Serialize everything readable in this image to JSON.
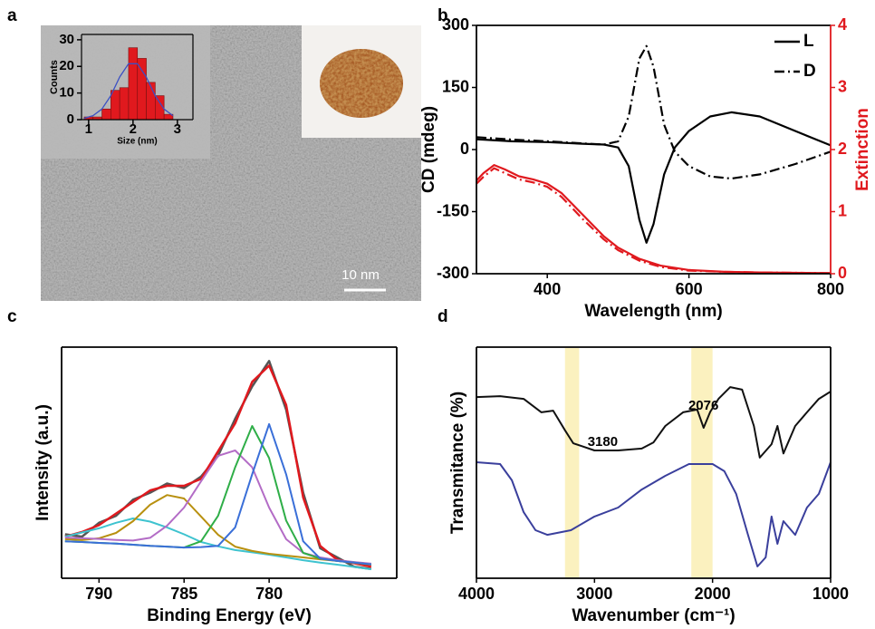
{
  "chart_data": [
    {
      "type": "histogram",
      "panel": "a",
      "xlabel": "Size (nm)",
      "ylabel": "Counts",
      "bins": [
        0.9,
        1.1,
        1.3,
        1.5,
        1.7,
        1.9,
        2.1,
        2.3,
        2.5,
        2.7,
        2.9
      ],
      "counts": [
        1,
        1,
        4,
        11,
        12,
        27,
        23,
        14,
        9,
        2
      ],
      "color": "#e0191e",
      "fit": {
        "color": "#3a4fc4",
        "x": [
          0.9,
          1.1,
          1.3,
          1.5,
          1.7,
          1.9,
          2.1,
          2.3,
          2.5,
          2.7,
          2.9
        ],
        "values": [
          0.5,
          1.5,
          4,
          9,
          16,
          21,
          21,
          16,
          9,
          4,
          1.5
        ]
      },
      "xlim": [
        0.84,
        3.35
      ],
      "xticks": [
        1,
        2,
        3
      ],
      "ylim": [
        0,
        32
      ],
      "yticks": [
        0,
        10,
        20,
        30
      ],
      "scale_bar_label": "10 nm"
    },
    {
      "type": "line",
      "panel": "b",
      "xlabel": "Wavelength (nm)",
      "ylabel": "CD (mdeg)",
      "y2label": "Extinction",
      "xlim": [
        300,
        800
      ],
      "xticks": [
        400,
        600,
        800
      ],
      "ylim": [
        -300,
        300
      ],
      "yticks": [
        -300,
        -150,
        0,
        150,
        300
      ],
      "y2lim": [
        0,
        4
      ],
      "y2ticks": [
        0,
        1,
        2,
        3,
        4
      ],
      "y2color": "#e0191e",
      "legend": "upper right",
      "series": [
        {
          "name": "L",
          "color": "#000000",
          "dash": "solid",
          "x": [
            300,
            350,
            400,
            450,
            480,
            500,
            515,
            530,
            540,
            550,
            565,
            580,
            600,
            630,
            660,
            700,
            750,
            800
          ],
          "values": [
            25,
            20,
            18,
            14,
            12,
            5,
            -40,
            -170,
            -225,
            -180,
            -60,
            5,
            45,
            80,
            90,
            80,
            45,
            10
          ]
        },
        {
          "name": "D",
          "color": "#000000",
          "dash": "dashdot",
          "x": [
            300,
            350,
            400,
            450,
            480,
            500,
            515,
            530,
            540,
            550,
            565,
            580,
            600,
            630,
            660,
            700,
            750,
            800
          ],
          "values": [
            30,
            24,
            20,
            15,
            12,
            20,
            80,
            220,
            250,
            200,
            60,
            -5,
            -40,
            -65,
            -70,
            -60,
            -35,
            -5
          ]
        },
        {
          "color": "#e0191e",
          "dash": "solid",
          "axis": "y2",
          "x": [
            300,
            310,
            325,
            340,
            360,
            380,
            400,
            420,
            450,
            480,
            500,
            530,
            560,
            600,
            650,
            700,
            800
          ],
          "values": [
            1.5,
            1.62,
            1.75,
            1.68,
            1.57,
            1.52,
            1.45,
            1.3,
            0.95,
            0.6,
            0.42,
            0.24,
            0.13,
            0.06,
            0.03,
            0.02,
            0.01
          ]
        },
        {
          "color": "#e0191e",
          "dash": "dashdot",
          "axis": "y2",
          "x": [
            300,
            310,
            325,
            340,
            360,
            380,
            400,
            420,
            450,
            480,
            500,
            530,
            560,
            600,
            650,
            700,
            800
          ],
          "values": [
            1.45,
            1.56,
            1.7,
            1.62,
            1.52,
            1.47,
            1.4,
            1.24,
            0.88,
            0.55,
            0.38,
            0.21,
            0.11,
            0.05,
            0.03,
            0.02,
            0.01
          ]
        }
      ]
    },
    {
      "type": "line",
      "panel": "c",
      "xlabel": "Binding Energy (eV)",
      "ylabel": "Intensity (a.u.)",
      "xlim": [
        792.2,
        772.5
      ],
      "xticks": [
        790,
        785,
        780
      ],
      "ylim": [
        0,
        100
      ],
      "x": [
        792,
        791,
        790,
        789,
        788,
        787,
        786,
        785,
        784,
        783,
        782,
        781,
        780,
        779,
        778,
        777,
        776,
        775,
        774
      ],
      "series": [
        {
          "color": "#555555",
          "width": 2.5,
          "values": [
            19,
            18,
            24,
            27,
            34,
            37,
            41,
            39,
            44,
            53,
            69,
            83,
            94,
            73,
            37,
            13,
            9,
            5,
            4
          ]
        },
        {
          "color": "#e0191e",
          "width": 2.5,
          "values": [
            18,
            20,
            23,
            28,
            33,
            38,
            40,
            40,
            43,
            55,
            67,
            85,
            92,
            75,
            35,
            14,
            8,
            6.5,
            5
          ]
        },
        {
          "color": "#3ec3cf",
          "width": 2,
          "values": [
            18,
            19.8,
            21.6,
            24,
            25.9,
            24.5,
            22,
            19,
            15.7,
            13.8,
            12.2,
            11.2,
            10.2,
            9,
            7.8,
            6.8,
            5.9,
            4.9,
            3.9
          ]
        },
        {
          "color": "#b8900f",
          "width": 2,
          "values": [
            16.9,
            16.5,
            17.3,
            19.6,
            24.7,
            31.8,
            36,
            34.5,
            26.7,
            18.8,
            13.7,
            11.8,
            10.6,
            9.8,
            9,
            8.2,
            7.5,
            6.7,
            5.9
          ]
        },
        {
          "color": "#b36cc6",
          "width": 2,
          "values": [
            17.6,
            17.3,
            17,
            16.6,
            16.3,
            17.5,
            22.7,
            30.6,
            42,
            53,
            55.3,
            48,
            30.6,
            16.9,
            11,
            9,
            7.8,
            7,
            6.3
          ]
        },
        {
          "color": "#2fae48",
          "width": 2,
          "values": [
            16,
            15.7,
            15.3,
            15,
            14.5,
            14,
            13.7,
            13.3,
            16,
            27,
            48,
            65.9,
            52,
            25,
            11,
            8.5,
            7.5,
            6.8,
            6
          ]
        },
        {
          "color": "#3a6fd8",
          "width": 2,
          "values": [
            16,
            15.7,
            15.3,
            15,
            14.5,
            14,
            13.7,
            13.3,
            13.5,
            14,
            22,
            45,
            66.7,
            45,
            16,
            8.5,
            7.5,
            6.8,
            6
          ]
        }
      ]
    },
    {
      "type": "line",
      "panel": "d",
      "xlabel": "Wavenumber (cm⁻¹)",
      "ylabel": "Transmitance (%)",
      "xlim": [
        4000,
        1000
      ],
      "xticks": [
        4000,
        3000,
        2000,
        1000
      ],
      "ylim": [
        0,
        100
      ],
      "bands": [
        {
          "label": "3180",
          "range": [
            3250,
            3130
          ],
          "color": "#fbf1bf"
        },
        {
          "label": "2076",
          "range": [
            2180,
            2000
          ],
          "color": "#fbf1bf"
        }
      ],
      "series": [
        {
          "color": "#111111",
          "width": 2,
          "x": [
            4000,
            3800,
            3600,
            3450,
            3350,
            3250,
            3180,
            3100,
            3000,
            2800,
            2600,
            2500,
            2400,
            2250,
            2130,
            2076,
            2020,
            1950,
            1850,
            1750,
            1650,
            1600,
            1500,
            1450,
            1400,
            1300,
            1200,
            1100,
            1000
          ],
          "values": [
            78.4,
            78.8,
            77.6,
            71.8,
            72.5,
            64,
            58.4,
            57,
            55.3,
            55.3,
            56.1,
            58.8,
            65.9,
            71.8,
            73,
            65.1,
            72,
            77.6,
            82.7,
            81.6,
            65.9,
            52.2,
            58,
            65.9,
            54,
            65.9,
            71.8,
            77.6,
            80.8
          ]
        },
        {
          "color": "#3a3f9c",
          "width": 2,
          "x": [
            4000,
            3800,
            3700,
            3600,
            3500,
            3400,
            3200,
            3000,
            2800,
            2600,
            2400,
            2200,
            2000,
            1900,
            1800,
            1700,
            1620,
            1550,
            1500,
            1450,
            1400,
            1300,
            1200,
            1100,
            1000
          ],
          "values": [
            50.2,
            49.4,
            42.4,
            28.6,
            20.8,
            18.8,
            20.8,
            26.7,
            30.6,
            38.4,
            44.3,
            49.4,
            49.4,
            46.3,
            36.5,
            18.8,
            5.1,
            9,
            26.7,
            14.9,
            24.7,
            18.8,
            30.6,
            36.5,
            50.2
          ]
        }
      ]
    }
  ]
}
